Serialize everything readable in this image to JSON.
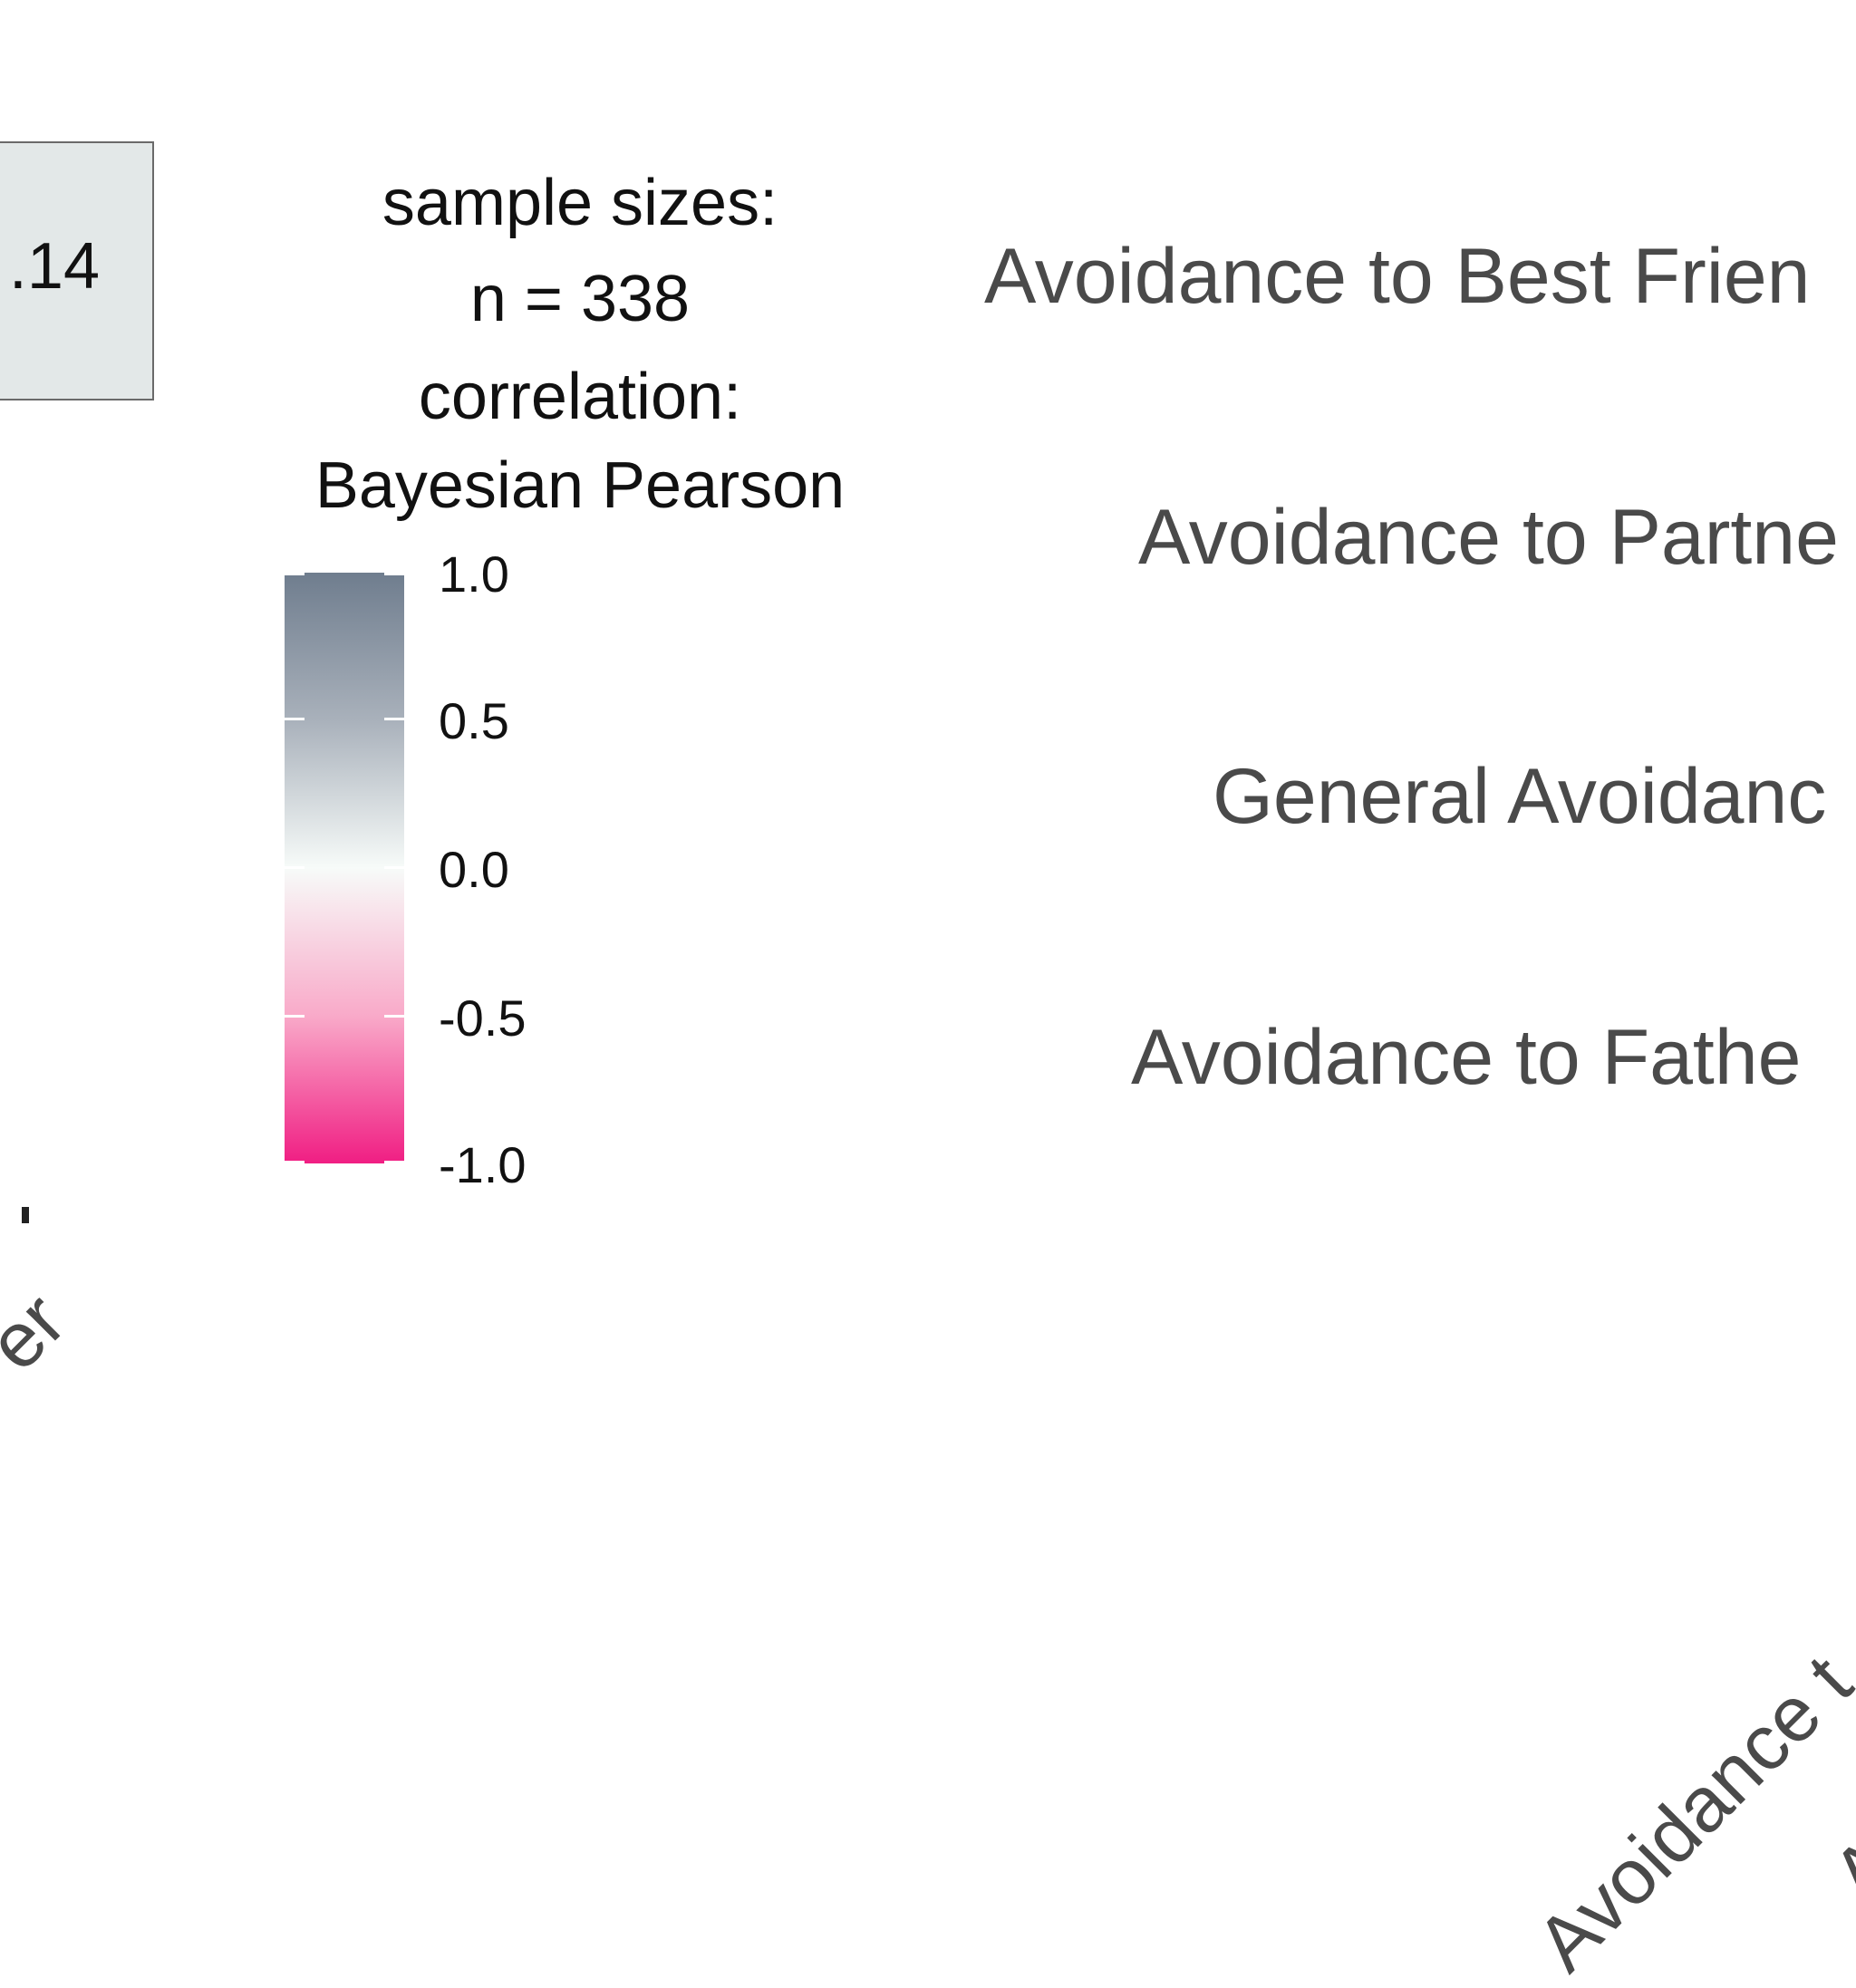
{
  "chart_data": {
    "type": "heatmap",
    "legend": {
      "sample_sizes_label": "sample sizes:",
      "n_label": "n = 338",
      "correlation_label": "correlation:",
      "correlation_type": "Bayesian Pearson",
      "colorbar": {
        "min": -1.0,
        "max": 1.0,
        "ticks": [
          "1.0",
          "0.5",
          "0.0",
          "-0.5",
          "-1.0"
        ],
        "colors": {
          "high": "#6f7d8e",
          "mid": "#f7fbf9",
          "low": "#f01e83"
        }
      }
    },
    "row_labels": [
      "Avoidance to Best Frien",
      "Avoidance to Partne",
      "General Avoidanc",
      "Avoidance to Fathe"
    ],
    "col_labels": [
      "er",
      "Avoidance t",
      "A"
    ],
    "visible_cell": {
      "value_text": ".14",
      "fill": "#e3e8e8"
    }
  }
}
